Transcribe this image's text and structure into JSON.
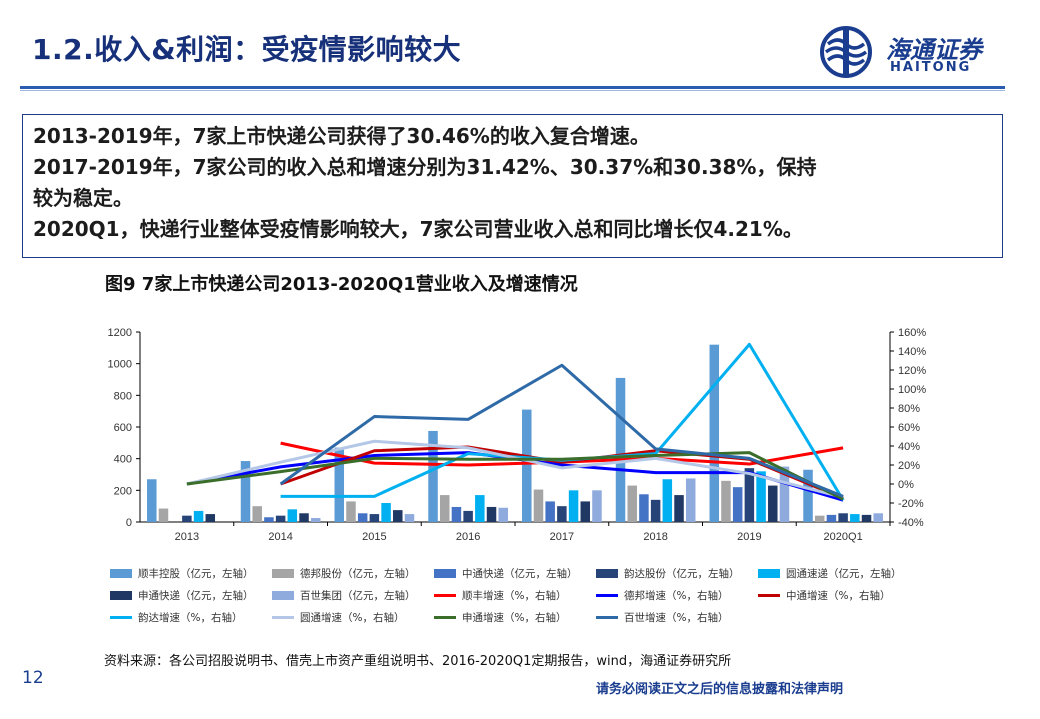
{
  "header": {
    "title": "1.2.收入&利润：受疫情影响较大",
    "brand_cn": "海通证券",
    "brand_en": "HAITONG"
  },
  "summary": {
    "lines": [
      "2013-2019年，7家上市快递公司获得了30.46%的收入复合增速。",
      "2017-2019年，7家公司的收入总和增速分别为31.42%、30.37%和30.38%，保持",
      "较为稳定。",
      "2020Q1，快递行业整体受疫情影响较大，7家公司营业收入总和同比增长仅4.21%。"
    ]
  },
  "figure_title": "图9 7家上市快递公司2013-2020Q1营业收入及增速情况",
  "source": "资料来源：各公司招股说明书、借壳上市资产重组说明书、2016-2020Q1定期报告，wind，海通证券研究所",
  "page_number": "12",
  "disclaimer": "请务必阅读正文之后的信息披露和法律声明",
  "colors": {
    "brand": "#1a3d8f",
    "title": "#17307a"
  },
  "chart_data": {
    "type": "bar",
    "categories": [
      "2013",
      "2014",
      "2015",
      "2016",
      "2017",
      "2018",
      "2019",
      "2020Q1"
    ],
    "y_left": {
      "range": [
        0,
        1200
      ],
      "ticks": [
        "0",
        "200",
        "400",
        "600",
        "800",
        "1000",
        "1200"
      ]
    },
    "y_right": {
      "range": [
        -40,
        160
      ],
      "ticks": [
        "-40%",
        "-20%",
        "0%",
        "20%",
        "40%",
        "60%",
        "80%",
        "100%",
        "120%",
        "140%",
        "160%"
      ]
    },
    "bar_series": [
      {
        "name": "顺丰控股（亿元，左轴）",
        "color": "#5b9bd5",
        "values": [
          270,
          385,
          470,
          575,
          710,
          910,
          1120,
          330
        ]
      },
      {
        "name": "德邦股份（亿元，左轴）",
        "color": "#a5a5a5",
        "values": [
          85,
          100,
          130,
          170,
          205,
          230,
          260,
          40
        ]
      },
      {
        "name": "中通快递（亿元，左轴）",
        "color": "#4472c4",
        "values": [
          null,
          30,
          55,
          95,
          130,
          175,
          220,
          45
        ]
      },
      {
        "name": "韵达股份（亿元，左轴）",
        "color": "#264478",
        "values": [
          40,
          40,
          50,
          70,
          100,
          140,
          340,
          55
        ]
      },
      {
        "name": "圆通速递（亿元，左轴）",
        "color": "#00b0f0",
        "values": [
          70,
          80,
          120,
          170,
          200,
          270,
          320,
          50
        ]
      },
      {
        "name": "申通快递（亿元，左轴）",
        "color": "#203864",
        "values": [
          50,
          55,
          75,
          95,
          130,
          170,
          230,
          45
        ]
      },
      {
        "name": "百世集团（亿元，左轴）",
        "color": "#8faadc",
        "values": [
          null,
          25,
          50,
          90,
          200,
          275,
          350,
          55
        ]
      }
    ],
    "line_series": [
      {
        "name": "顺丰增速（%，右轴）",
        "color": "#ff0000",
        "values": [
          null,
          43,
          22,
          20,
          23,
          27,
          21,
          38
        ]
      },
      {
        "name": "德邦增速（%，右轴）",
        "color": "#0000ff",
        "values": [
          0,
          18,
          30,
          33,
          20,
          12,
          12,
          -17
        ]
      },
      {
        "name": "中通增速（%，右轴）",
        "color": "#c00000",
        "values": [
          null,
          0,
          35,
          39,
          23,
          35,
          26,
          -15
        ]
      },
      {
        "name": "韵达增速（%，右轴）",
        "color": "#00b0f0",
        "values": [
          null,
          -13,
          -13,
          32,
          25,
          32,
          147,
          -17
        ]
      },
      {
        "name": "圆通增速（%，右轴）",
        "color": "#b4c7e7",
        "values": [
          0,
          23,
          45,
          38,
          17,
          27,
          11,
          -14
        ]
      },
      {
        "name": "申通增速（%，右轴）",
        "color": "#3a6e2a",
        "values": [
          0,
          13,
          27,
          26,
          26,
          30,
          33,
          -16
        ]
      },
      {
        "name": "百世增速（%，右轴）",
        "color": "#2e6aa7",
        "values": [
          null,
          0,
          71,
          68,
          125,
          37,
          27,
          -13
        ]
      }
    ],
    "legend_placement": "bottom",
    "grid": false
  }
}
